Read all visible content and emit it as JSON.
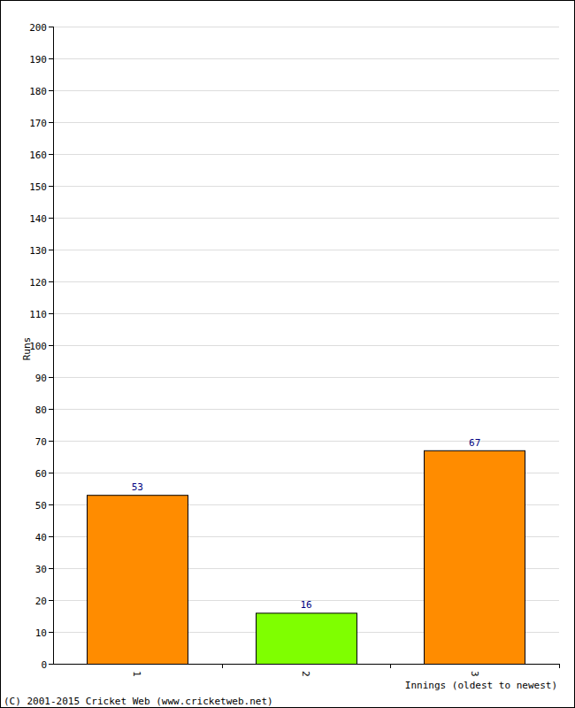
{
  "chart_data": {
    "type": "bar",
    "x_label": "Innings (oldest to newest)",
    "y_label": "Runs",
    "annotations": [
      "(C) 2001-2015 Cricket Web (www.cricketweb.net)"
    ],
    "categories": [
      "1",
      "2",
      "3"
    ],
    "values": [
      53,
      16,
      67
    ],
    "colors": [
      "#ff8c00",
      "#7fff00",
      "#ff8c00"
    ],
    "ylim": [
      0,
      200
    ],
    "yticks": [
      0,
      10,
      20,
      30,
      40,
      50,
      60,
      70,
      80,
      90,
      100,
      110,
      120,
      130,
      140,
      150,
      160,
      170,
      180,
      190,
      200
    ],
    "grid": true,
    "data_labels": true
  }
}
